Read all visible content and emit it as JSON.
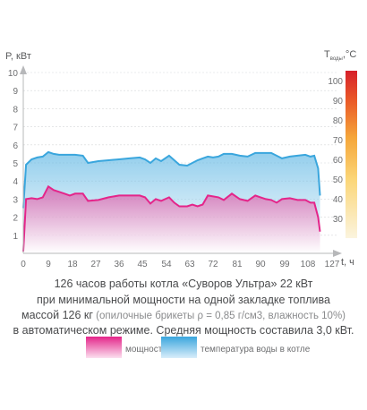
{
  "chart_data": {
    "type": "area",
    "y_label": "P, кВт",
    "x_label": "t, ч",
    "temp_label_main": "T",
    "temp_label_sub": "воды",
    "temp_label_unit": ",°C",
    "y_ticks": [
      "1",
      "2",
      "3",
      "4",
      "5",
      "6",
      "7",
      "8",
      "9",
      "10"
    ],
    "x_ticks": [
      "0",
      "9",
      "18",
      "27",
      "36",
      "45",
      "54",
      "63",
      "72",
      "81",
      "90",
      "99",
      "108",
      "127"
    ],
    "temp_ticks": [
      "30",
      "40",
      "50",
      "60",
      "70",
      "80",
      "90",
      "100"
    ],
    "ylim": [
      0,
      10
    ],
    "templim": [
      20,
      105
    ],
    "series": [
      {
        "name": "мощность",
        "color_top": "#e4258a",
        "color_bottom": "#fbe0ef",
        "x": [
          0,
          1,
          3,
          5,
          7,
          9,
          11,
          13,
          15,
          17,
          19,
          22,
          24,
          28,
          32,
          36,
          40,
          44,
          46,
          48,
          50,
          52,
          55,
          57,
          59,
          62,
          64,
          66,
          68,
          70,
          72,
          74,
          76,
          79,
          82,
          85,
          88,
          90,
          92,
          94,
          96,
          98,
          101,
          104,
          107,
          110,
          113,
          116,
          117.5
        ],
        "values": [
          0.1,
          3.0,
          3.05,
          3.0,
          3.1,
          3.7,
          3.5,
          3.4,
          3.3,
          3.2,
          3.3,
          3.3,
          2.9,
          2.95,
          3.1,
          3.2,
          3.2,
          3.2,
          3.1,
          2.75,
          3.0,
          2.9,
          3.1,
          2.8,
          2.6,
          2.6,
          2.7,
          2.6,
          2.7,
          3.2,
          3.15,
          3.1,
          2.95,
          3.3,
          3.0,
          2.9,
          3.2,
          3.1,
          3.0,
          2.95,
          2.8,
          3.0,
          3.05,
          2.95,
          2.95,
          2.8,
          2.8,
          2.0,
          1.2
        ]
      },
      {
        "name": "температура воды в котле",
        "color_top": "#3aa6dd",
        "color_bottom": "#d9eefa",
        "x": [
          0,
          1,
          3,
          5,
          7,
          9,
          11,
          13,
          15,
          17,
          19,
          22,
          24,
          28,
          32,
          36,
          40,
          44,
          46,
          48,
          50,
          52,
          55,
          57,
          59,
          62,
          64,
          66,
          68,
          70,
          72,
          74,
          76,
          79,
          82,
          85,
          88,
          90,
          92,
          94,
          96,
          98,
          101,
          104,
          107,
          110,
          113,
          116,
          117.5
        ],
        "values": [
          2.5,
          4.9,
          5.2,
          5.3,
          5.35,
          5.6,
          5.5,
          5.45,
          5.45,
          5.45,
          5.45,
          5.4,
          5.0,
          5.1,
          5.15,
          5.2,
          5.25,
          5.3,
          5.2,
          5.0,
          5.25,
          5.1,
          5.4,
          5.15,
          4.9,
          4.85,
          5.0,
          5.15,
          5.25,
          5.35,
          5.3,
          5.35,
          5.5,
          5.5,
          5.4,
          5.35,
          5.55,
          5.55,
          5.55,
          5.55,
          5.4,
          5.25,
          5.35,
          5.4,
          5.45,
          5.35,
          5.4,
          4.7,
          3.2
        ]
      }
    ],
    "temp_scale_colors": [
      "#fbf4de",
      "#fbd678",
      "#f5a63a",
      "#ea5a28",
      "#d6202a"
    ]
  },
  "caption": {
    "line1": "126 часов работы котла «Суворов Ультра» 22 кВт",
    "line2": "при минимальной мощности на одной закладке топлива",
    "line3_strong": "массой 126 кг",
    "line3_light": " (опилочные брикеты ρ = 0,85 г/см3, влажность 10%)",
    "line4": "в автоматическом режиме. Средняя мощность составила 3,0 кВт."
  },
  "legend": {
    "power_label": "мощность",
    "water_label": "температура воды в котле",
    "power_color": "#e4258a",
    "water_color": "#3aa6dd"
  }
}
